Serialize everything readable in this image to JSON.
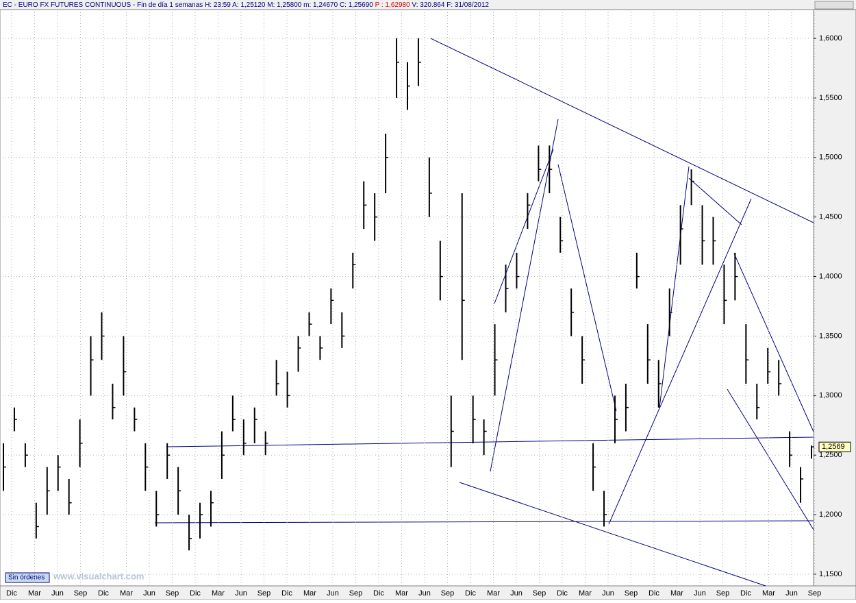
{
  "header": {
    "symbol": "EC - EURO FX FUTURES CONTINUOUS - Fin de día 1 semanas",
    "fields": [
      {
        "label": "H:",
        "value": "23:59"
      },
      {
        "label": "A:",
        "value": "1,25120"
      },
      {
        "label": "M:",
        "value": "1,25800"
      },
      {
        "label": "m:",
        "value": "1,24670"
      },
      {
        "label": "C:",
        "value": "1,25690"
      },
      {
        "label": "P :",
        "value": "1,62980"
      },
      {
        "label": "V:",
        "value": "320.864"
      },
      {
        "label": "F:",
        "value": "31/08/2012"
      }
    ]
  },
  "status": "Sin órdenes",
  "watermark": "www.visualchart.com",
  "chart_data": {
    "type": "ohlc",
    "categories": [
      "Dic",
      "Mar",
      "Jun",
      "Sep",
      "Dic",
      "Mar",
      "Jun",
      "Sep",
      "Dic",
      "Mar",
      "Jun",
      "Sep",
      "Dic",
      "Mar",
      "Jun",
      "Sep",
      "Dic",
      "Mar",
      "Jun",
      "Sep",
      "Dic",
      "Mar",
      "Jun",
      "Sep",
      "Dic",
      "Mar",
      "Jun",
      "Sep",
      "Dic",
      "Mar",
      "Jun",
      "Sep",
      "Dic",
      "Mar",
      "Jun",
      "Sep"
    ],
    "series": {
      "high": [
        1.26,
        1.29,
        1.26,
        1.21,
        1.24,
        1.25,
        1.23,
        1.28,
        1.35,
        1.37,
        1.31,
        1.35,
        1.29,
        1.26,
        1.22,
        1.26,
        1.24,
        1.2,
        1.21,
        1.22,
        1.27,
        1.3,
        1.28,
        1.29,
        1.27,
        1.33,
        1.32,
        1.35,
        1.37,
        1.35,
        1.39,
        1.37,
        1.42,
        1.48,
        1.47,
        1.52,
        1.6,
        1.58,
        1.6,
        1.5,
        1.43,
        1.3,
        1.47,
        1.3,
        1.28,
        1.36,
        1.41,
        1.42,
        1.47,
        1.51,
        1.51,
        1.45,
        1.39,
        1.35,
        1.26,
        1.22,
        1.3,
        1.31,
        1.42,
        1.36,
        1.33,
        1.39,
        1.46,
        1.49,
        1.46,
        1.45,
        1.41,
        1.42,
        1.36,
        1.31,
        1.34,
        1.33,
        1.27,
        1.24,
        1.258
      ],
      "low": [
        1.22,
        1.27,
        1.24,
        1.18,
        1.2,
        1.22,
        1.2,
        1.24,
        1.3,
        1.33,
        1.28,
        1.3,
        1.27,
        1.22,
        1.19,
        1.23,
        1.2,
        1.17,
        1.18,
        1.19,
        1.23,
        1.27,
        1.25,
        1.26,
        1.25,
        1.3,
        1.29,
        1.32,
        1.35,
        1.33,
        1.36,
        1.34,
        1.39,
        1.44,
        1.43,
        1.47,
        1.55,
        1.54,
        1.56,
        1.45,
        1.38,
        1.24,
        1.33,
        1.26,
        1.25,
        1.3,
        1.37,
        1.39,
        1.44,
        1.48,
        1.47,
        1.42,
        1.35,
        1.31,
        1.22,
        1.19,
        1.26,
        1.27,
        1.39,
        1.31,
        1.29,
        1.35,
        1.41,
        1.46,
        1.41,
        1.41,
        1.36,
        1.38,
        1.31,
        1.28,
        1.31,
        1.3,
        1.24,
        1.21,
        1.247
      ],
      "close": [
        1.24,
        1.28,
        1.25,
        1.19,
        1.22,
        1.24,
        1.21,
        1.26,
        1.33,
        1.35,
        1.29,
        1.32,
        1.28,
        1.24,
        1.2,
        1.25,
        1.22,
        1.18,
        1.2,
        1.21,
        1.25,
        1.28,
        1.26,
        1.28,
        1.26,
        1.31,
        1.3,
        1.34,
        1.36,
        1.34,
        1.38,
        1.35,
        1.41,
        1.46,
        1.45,
        1.5,
        1.58,
        1.56,
        1.58,
        1.47,
        1.4,
        1.27,
        1.38,
        1.28,
        1.27,
        1.33,
        1.39,
        1.4,
        1.46,
        1.49,
        1.49,
        1.43,
        1.37,
        1.33,
        1.24,
        1.2,
        1.28,
        1.29,
        1.4,
        1.33,
        1.31,
        1.37,
        1.44,
        1.48,
        1.43,
        1.43,
        1.38,
        1.4,
        1.33,
        1.29,
        1.32,
        1.31,
        1.25,
        1.23,
        1.2569
      ]
    },
    "last_label": "1,2569",
    "ylim": [
      1.1402,
      1.6242
    ],
    "yticks": [
      {
        "value": 1.15,
        "label": "1,1500"
      },
      {
        "value": 1.2,
        "label": "1,2000"
      },
      {
        "value": 1.25,
        "label": "1,2500"
      },
      {
        "value": 1.3,
        "label": "1,3000"
      },
      {
        "value": 1.35,
        "label": "1,3500"
      },
      {
        "value": 1.4,
        "label": "1,4000"
      },
      {
        "value": 1.45,
        "label": "1,4500"
      },
      {
        "value": 1.5,
        "label": "1,5000"
      },
      {
        "value": 1.55,
        "label": "1,5500"
      },
      {
        "value": 1.6,
        "label": "1,6000"
      }
    ],
    "grid": true,
    "color": "#000000"
  }
}
